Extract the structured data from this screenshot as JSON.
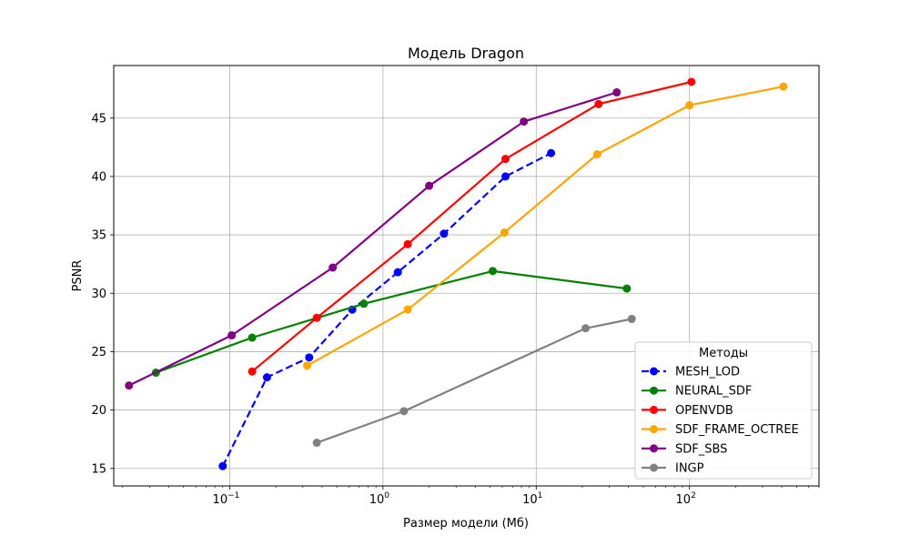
{
  "chart_data": {
    "type": "line",
    "title": "Модель Dragon",
    "xlabel": "Размер модели (Мб)",
    "ylabel": "PSNR",
    "xscale": "log",
    "xlim": [
      0.0175,
      700
    ],
    "ylim": [
      13.5,
      49.5
    ],
    "yticks": [
      15,
      20,
      25,
      30,
      35,
      40,
      45
    ],
    "xticks": [
      {
        "value": 0.1,
        "base": "10",
        "exp": "−1"
      },
      {
        "value": 1,
        "base": "10",
        "exp": "0"
      },
      {
        "value": 10,
        "base": "10",
        "exp": "1"
      },
      {
        "value": 100,
        "base": "10",
        "exp": "2"
      }
    ],
    "grid": true,
    "legend": {
      "title": "Методы",
      "placement": "lower-right"
    },
    "series": [
      {
        "name": "MESH_LOD",
        "color": "#0000ff",
        "dashed": true,
        "x": [
          0.09,
          0.175,
          0.33,
          0.63,
          1.25,
          2.5,
          6.3,
          12.5
        ],
        "y": [
          15.2,
          22.8,
          24.5,
          28.6,
          31.8,
          35.1,
          40.0,
          42.0
        ]
      },
      {
        "name": "NEURAL_SDF",
        "color": "#008000",
        "dashed": false,
        "x": [
          0.033,
          0.14,
          0.75,
          5.2,
          39
        ],
        "y": [
          23.2,
          26.2,
          29.1,
          31.9,
          30.4
        ]
      },
      {
        "name": "OPENVDB",
        "color": "#ff0000",
        "dashed": false,
        "x": [
          0.14,
          0.37,
          1.45,
          6.3,
          25.5,
          103
        ],
        "y": [
          23.3,
          27.9,
          34.2,
          41.5,
          46.2,
          48.1
        ]
      },
      {
        "name": "SDF_FRAME_OCTREE",
        "color": "#ffa500",
        "dashed": false,
        "x": [
          0.32,
          1.45,
          6.2,
          25,
          100,
          410
        ],
        "y": [
          23.8,
          28.6,
          35.2,
          41.9,
          46.1,
          47.7
        ]
      },
      {
        "name": "SDF_SBS",
        "color": "#800080",
        "dashed": false,
        "x": [
          0.022,
          0.103,
          0.47,
          2.0,
          8.3,
          33.5
        ],
        "y": [
          22.1,
          26.4,
          32.2,
          39.2,
          44.7,
          47.2
        ]
      },
      {
        "name": "INGP",
        "color": "#808080",
        "dashed": false,
        "x": [
          0.37,
          1.37,
          21,
          42
        ],
        "y": [
          17.2,
          19.9,
          27.0,
          27.8
        ]
      }
    ]
  }
}
